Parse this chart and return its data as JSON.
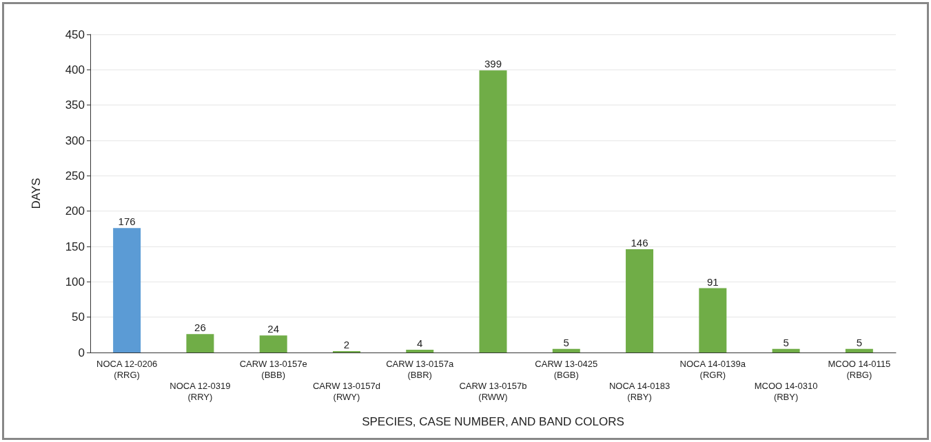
{
  "chart_data": {
    "type": "bar",
    "xlabel": "SPECIES, CASE NUMBER, AND BAND COLORS",
    "ylabel": "DAYS",
    "categories": [
      "NOCA 12-0206\n(RRG)",
      "NOCA 12-0319\n(RRY)",
      "CARW 13-0157e\n(BBB)",
      "CARW 13-0157d\n(RWY)",
      "CARW 13-0157a\n(BBR)",
      "CARW 13-0157b\n(RWW)",
      "CARW 13-0425\n(BGB)",
      "NOCA 14-0183\n(RBY)",
      "NOCA 14-0139a\n(RGR)",
      "MCOO 14-0310\n(RBY)",
      "MCOO 14-0115\n(RBG)"
    ],
    "values": [
      176,
      26,
      24,
      2,
      4,
      399,
      5,
      146,
      91,
      5,
      5
    ],
    "colors": [
      "#5b9bd5",
      "#70ad47",
      "#70ad47",
      "#70ad47",
      "#70ad47",
      "#70ad47",
      "#70ad47",
      "#70ad47",
      "#70ad47",
      "#70ad47",
      "#70ad47"
    ],
    "ylim": [
      0,
      450
    ],
    "yticks": [
      0,
      50,
      100,
      150,
      200,
      250,
      300,
      350,
      400,
      450
    ],
    "grid": "y",
    "data_labels": true
  }
}
